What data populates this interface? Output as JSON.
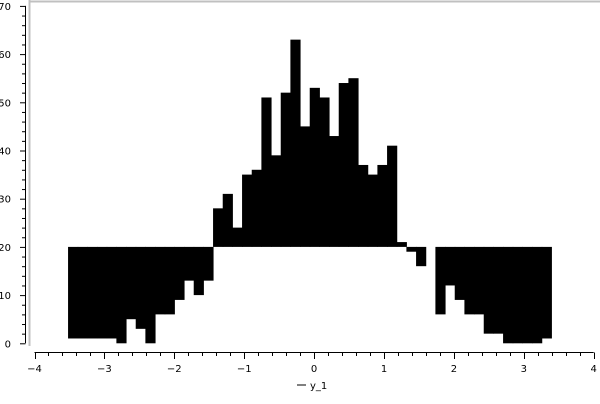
{
  "chart_data": {
    "type": "bar",
    "subtype": "histogram-from-baseline",
    "title": "",
    "xlabel": "y_1",
    "ylabel": "",
    "xlim": [
      -4,
      4
    ],
    "ylim": [
      0,
      70
    ],
    "x_ticks": [
      "-4",
      "-3",
      "-2",
      "-1",
      "0",
      "1",
      "2",
      "3",
      "4"
    ],
    "y_ticks": [
      "0",
      "10",
      "20",
      "30",
      "40",
      "50",
      "60",
      "70"
    ],
    "baseline": 20,
    "bin_start": -3.52,
    "bin_width": 0.1383,
    "grid": false,
    "bar_color": "#000000",
    "frame_color": "#c0c0c0",
    "series": [
      {
        "name": "y_1",
        "values": [
          1,
          1,
          1,
          1,
          1,
          0,
          5,
          3,
          0,
          6,
          6,
          9,
          13,
          10,
          13,
          28,
          31,
          24,
          35,
          36,
          51,
          39,
          52,
          63,
          45,
          53,
          51,
          43,
          54,
          55,
          37,
          35,
          37,
          41,
          21,
          19,
          16,
          20,
          6,
          12,
          9,
          6,
          6,
          2,
          2,
          0,
          0,
          0,
          0,
          1
        ]
      }
    ]
  }
}
